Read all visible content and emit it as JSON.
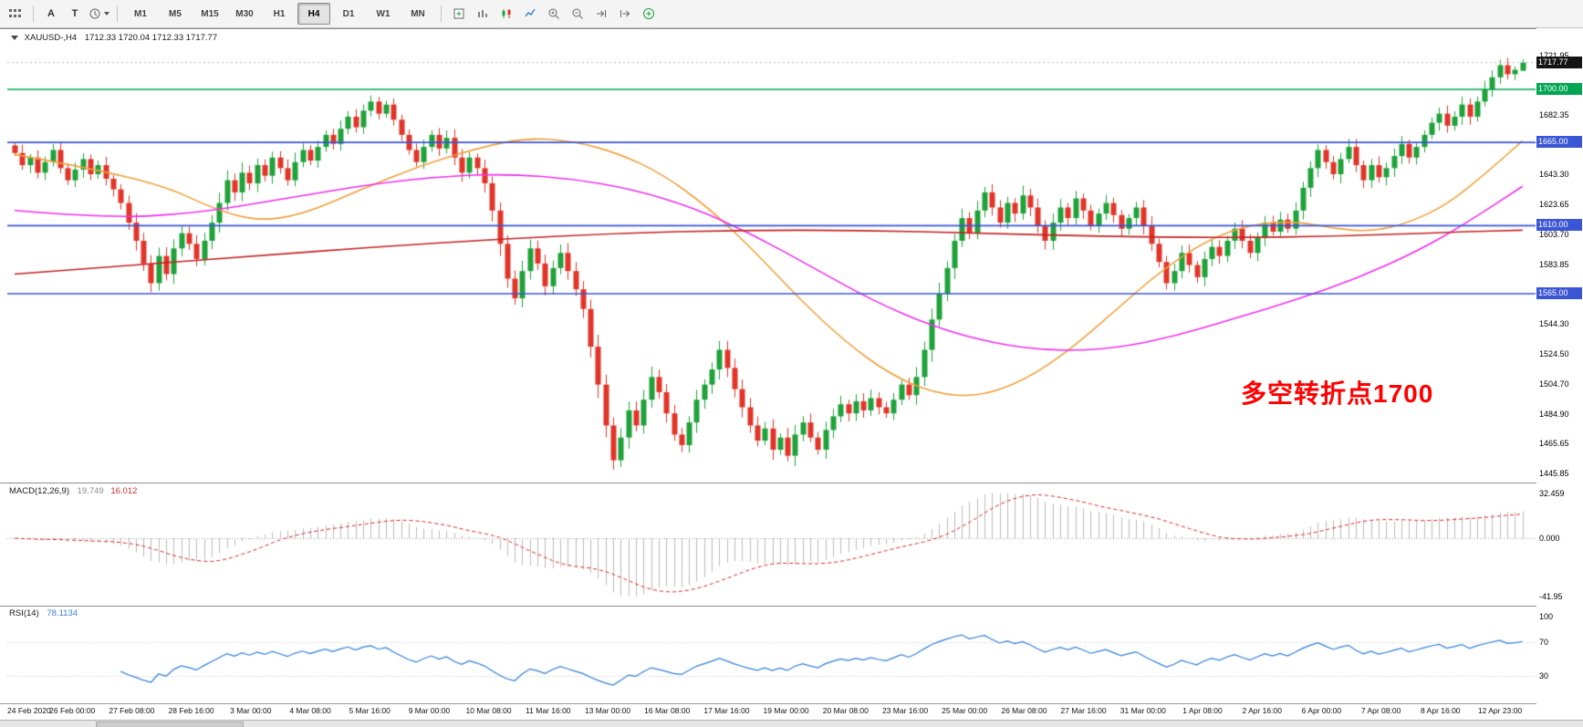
{
  "toolbar": {
    "left_labels": {
      "a": "A",
      "t": "T"
    },
    "timeframes": [
      "M1",
      "M5",
      "M15",
      "M30",
      "H1",
      "H4",
      "D1",
      "W1",
      "MN"
    ],
    "active_timeframe": "H4"
  },
  "panels": {
    "main": {
      "header_symbol": "XAUUSD-,H4",
      "header_values": "1712.33 1720.04 1712.33 1717.77",
      "annotation": "多空转折点1700"
    },
    "macd": {
      "label": "MACD(12,26,9)",
      "main_value": "19.749",
      "signal_value": "16.012",
      "axis": [
        {
          "text": "32.459",
          "value": 32.459
        },
        {
          "text": "0.000",
          "value": 0
        },
        {
          "text": "-41.95",
          "value": -41.957
        }
      ]
    },
    "rsi": {
      "label": "RSI(14)",
      "value": "78.1134",
      "axis": [
        {
          "text": "100",
          "value": 100
        },
        {
          "text": "70",
          "value": 70
        },
        {
          "text": "30",
          "value": 30
        }
      ]
    }
  },
  "right_axis": {
    "price_labels": [
      {
        "text": "1721.95",
        "price": 1721.95,
        "style": "normal"
      },
      {
        "text": "1717.77",
        "price": 1717.77,
        "style": "current"
      },
      {
        "text": "1700.00",
        "price": 1700.0,
        "style": "green"
      },
      {
        "text": "1682.35",
        "price": 1682.35,
        "style": "normal"
      },
      {
        "text": "1665.00",
        "price": 1665.0,
        "style": "blue"
      },
      {
        "text": "1643.30",
        "price": 1643.3,
        "style": "normal"
      },
      {
        "text": "1623.65",
        "price": 1623.65,
        "style": "normal"
      },
      {
        "text": "1610.00",
        "price": 1610.0,
        "style": "blue"
      },
      {
        "text": "1603.70",
        "price": 1603.7,
        "style": "normal"
      },
      {
        "text": "1583.85",
        "price": 1583.85,
        "style": "normal"
      },
      {
        "text": "1565.00",
        "price": 1565.0,
        "style": "blue"
      },
      {
        "text": "1544.30",
        "price": 1544.3,
        "style": "normal"
      },
      {
        "text": "1524.50",
        "price": 1524.5,
        "style": "normal"
      },
      {
        "text": "1504.70",
        "price": 1504.7,
        "style": "normal"
      },
      {
        "text": "1484.90",
        "price": 1484.9,
        "style": "normal"
      },
      {
        "text": "1465.65",
        "price": 1465.65,
        "style": "normal"
      },
      {
        "text": "1445.85",
        "price": 1445.85,
        "style": "normal"
      }
    ]
  },
  "chart_data": {
    "type": "candlestick",
    "symbol": "XAUUSD-",
    "timeframe": "H4",
    "title": "XAUUSD-,H4 1712.33 1720.04 1712.33 1717.77",
    "visible_price_range": [
      1445.85,
      1721.95
    ],
    "first_open": 1663,
    "closes": [
      1658,
      1650,
      1655,
      1645,
      1652,
      1660,
      1648,
      1640,
      1647,
      1654,
      1644,
      1650,
      1641,
      1634,
      1625,
      1612,
      1600,
      1585,
      1572,
      1590,
      1578,
      1595,
      1605,
      1598,
      1588,
      1600,
      1612,
      1625,
      1640,
      1632,
      1645,
      1638,
      1650,
      1643,
      1655,
      1648,
      1640,
      1652,
      1660,
      1653,
      1662,
      1670,
      1664,
      1674,
      1682,
      1675,
      1686,
      1692,
      1684,
      1690,
      1680,
      1670,
      1660,
      1652,
      1662,
      1670,
      1661,
      1668,
      1655,
      1645,
      1655,
      1648,
      1638,
      1620,
      1598,
      1575,
      1562,
      1580,
      1595,
      1585,
      1570,
      1582,
      1592,
      1580,
      1568,
      1555,
      1530,
      1505,
      1478,
      1455,
      1470,
      1488,
      1478,
      1495,
      1510,
      1500,
      1486,
      1472,
      1465,
      1480,
      1495,
      1505,
      1515,
      1528,
      1516,
      1502,
      1490,
      1478,
      1468,
      1476,
      1462,
      1470,
      1458,
      1472,
      1480,
      1470,
      1462,
      1475,
      1484,
      1492,
      1486,
      1494,
      1488,
      1496,
      1490,
      1486,
      1495,
      1505,
      1498,
      1510,
      1528,
      1548,
      1565,
      1582,
      1600,
      1615,
      1605,
      1620,
      1632,
      1622,
      1612,
      1625,
      1618,
      1630,
      1622,
      1610,
      1600,
      1612,
      1622,
      1615,
      1628,
      1620,
      1610,
      1618,
      1625,
      1617,
      1608,
      1615,
      1622,
      1610,
      1598,
      1586,
      1572,
      1580,
      1592,
      1584,
      1576,
      1588,
      1596,
      1590,
      1600,
      1608,
      1600,
      1592,
      1602,
      1612,
      1606,
      1614,
      1608,
      1620,
      1635,
      1648,
      1660,
      1652,
      1644,
      1654,
      1662,
      1650,
      1640,
      1650,
      1642,
      1648,
      1656,
      1664,
      1655,
      1662,
      1670,
      1678,
      1684,
      1676,
      1682,
      1690,
      1682,
      1692,
      1700,
      1708,
      1716,
      1710,
      1713,
      1717.77
    ],
    "last_candle": {
      "open": 1712.33,
      "high": 1720.04,
      "low": 1712.33,
      "close": 1717.77
    },
    "time_labels": [
      "24 Feb 2020",
      "26 Feb 00:00",
      "27 Feb 08:00",
      "28 Feb 16:00",
      "3 Mar 00:00",
      "4 Mar 08:00",
      "5 Mar 16:00",
      "9 Mar 00:00",
      "10 Mar 08:00",
      "11 Mar 16:00",
      "13 Mar 00:00",
      "16 Mar 08:00",
      "17 Mar 16:00",
      "19 Mar 00:00",
      "20 Mar 08:00",
      "23 Mar 16:00",
      "25 Mar 00:00",
      "26 Mar 08:00",
      "27 Mar 16:00",
      "31 Mar 00:00",
      "1 Apr 08:00",
      "2 Apr 16:00",
      "6 Apr 00:00",
      "7 Apr 08:00",
      "8 Apr 16:00",
      "12 Apr 23:00"
    ],
    "horizontal_levels": [
      {
        "price": 1700.0,
        "label": "1700.00",
        "color": "#00a651"
      },
      {
        "price": 1665.0,
        "label": "1665.00",
        "color": "#3a56d4"
      },
      {
        "price": 1610.0,
        "label": "1610.00",
        "color": "#3a56d4"
      },
      {
        "price": 1565.0,
        "label": "1565.00",
        "color": "#3a56d4"
      }
    ],
    "moving_averages": [
      {
        "name": "ma-fast-orange",
        "color": "#f0a03c",
        "points": [
          [
            0.0,
            1657
          ],
          [
            0.05,
            1648
          ],
          [
            0.1,
            1636
          ],
          [
            0.13,
            1622
          ],
          [
            0.16,
            1613
          ],
          [
            0.19,
            1617
          ],
          [
            0.23,
            1634
          ],
          [
            0.27,
            1650
          ],
          [
            0.31,
            1662
          ],
          [
            0.34,
            1668
          ],
          [
            0.37,
            1666
          ],
          [
            0.4,
            1658
          ],
          [
            0.43,
            1644
          ],
          [
            0.46,
            1622
          ],
          [
            0.49,
            1594
          ],
          [
            0.52,
            1562
          ],
          [
            0.55,
            1534
          ],
          [
            0.58,
            1512
          ],
          [
            0.61,
            1499
          ],
          [
            0.64,
            1497
          ],
          [
            0.67,
            1508
          ],
          [
            0.7,
            1528
          ],
          [
            0.73,
            1554
          ],
          [
            0.76,
            1580
          ],
          [
            0.79,
            1600
          ],
          [
            0.82,
            1611
          ],
          [
            0.85,
            1613
          ],
          [
            0.875,
            1608
          ],
          [
            0.9,
            1606
          ],
          [
            0.925,
            1612
          ],
          [
            0.95,
            1624
          ],
          [
            0.975,
            1644
          ],
          [
            1.0,
            1666
          ]
        ]
      },
      {
        "name": "ma-mid-magenta",
        "color": "#ee2fee",
        "points": [
          [
            0.0,
            1620
          ],
          [
            0.06,
            1615
          ],
          [
            0.12,
            1618
          ],
          [
            0.18,
            1628
          ],
          [
            0.24,
            1638
          ],
          [
            0.29,
            1643
          ],
          [
            0.33,
            1644
          ],
          [
            0.37,
            1641
          ],
          [
            0.41,
            1634
          ],
          [
            0.45,
            1622
          ],
          [
            0.49,
            1604
          ],
          [
            0.53,
            1582
          ],
          [
            0.57,
            1560
          ],
          [
            0.61,
            1543
          ],
          [
            0.65,
            1532
          ],
          [
            0.69,
            1527
          ],
          [
            0.73,
            1529
          ],
          [
            0.77,
            1537
          ],
          [
            0.81,
            1549
          ],
          [
            0.85,
            1561
          ],
          [
            0.89,
            1575
          ],
          [
            0.93,
            1593
          ],
          [
            0.96,
            1610
          ],
          [
            1.0,
            1636
          ]
        ]
      },
      {
        "name": "ma-slow-red",
        "color": "#c22424",
        "points": [
          [
            0.0,
            1578
          ],
          [
            0.08,
            1584
          ],
          [
            0.16,
            1590
          ],
          [
            0.24,
            1596
          ],
          [
            0.32,
            1601
          ],
          [
            0.4,
            1605
          ],
          [
            0.48,
            1607
          ],
          [
            0.56,
            1607
          ],
          [
            0.64,
            1605
          ],
          [
            0.72,
            1603
          ],
          [
            0.8,
            1602
          ],
          [
            0.88,
            1603
          ],
          [
            0.96,
            1606
          ],
          [
            1.0,
            1607
          ]
        ]
      }
    ],
    "indicators": {
      "macd": {
        "params": "12,26,9",
        "current_main": 19.749,
        "current_signal": 16.012,
        "scale_max": 32.459,
        "scale_min": -41.957
      },
      "rsi": {
        "period": 14,
        "current": 78.1134,
        "levels": [
          70,
          30
        ],
        "scale": [
          0,
          100
        ]
      }
    },
    "colors": {
      "bull": "#1fa23a",
      "bear": "#e23529",
      "macd_hist": "#bbbbbb",
      "macd_signal": "#e02020",
      "rsi_line": "#2f7ed8"
    }
  }
}
